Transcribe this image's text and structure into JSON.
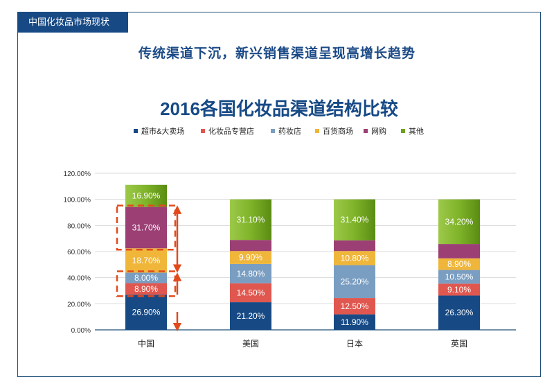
{
  "header": {
    "section_tab": "中国化妆品市场现状",
    "headline": "传统渠道下沉，新兴销售渠道呈现高增长趋势"
  },
  "chart_data": {
    "type": "bar",
    "stacked": true,
    "title": "2016各国化妆品渠道结构比较",
    "xlabel": "",
    "ylabel": "",
    "ylim": [
      0,
      120
    ],
    "yticks": [
      "0.00%",
      "20.00%",
      "40.00%",
      "60.00%",
      "80.00%",
      "100.00%",
      "120.00%"
    ],
    "grid": true,
    "legend_position": "top",
    "categories": [
      "中国",
      "美国",
      "日本",
      "英国"
    ],
    "series": [
      {
        "name": "超市&大卖场",
        "color": "#174a85",
        "values": [
          26.9,
          21.2,
          11.9,
          26.3
        ],
        "labels": [
          "26.90%",
          "21.20%",
          "11.90%",
          "26.30%"
        ]
      },
      {
        "name": "化妆品专营店",
        "color": "#e0574f",
        "values": [
          8.9,
          14.5,
          12.5,
          9.1
        ],
        "labels": [
          "8.90%",
          "14.50%",
          "12.50%",
          "9.10%"
        ]
      },
      {
        "name": "药妆店",
        "color": "#7a9ec2",
        "values": [
          8.0,
          14.8,
          25.2,
          10.5
        ],
        "labels": [
          "8.00%",
          "14.80%",
          "25.20%",
          "10.50%"
        ]
      },
      {
        "name": "百货商场",
        "color": "#f0b63a",
        "values": [
          18.7,
          9.9,
          10.8,
          8.9
        ],
        "labels": [
          "18.70%",
          "9.90%",
          "10.80%",
          "8.90%"
        ]
      },
      {
        "name": "网购",
        "color": "#9b3f74",
        "values": [
          31.7,
          8.5,
          8.2,
          11.0
        ],
        "labels": [
          "31.70%",
          "",
          "",
          ""
        ]
      },
      {
        "name": "其他",
        "color": "#6ea120",
        "values": [
          16.9,
          31.1,
          31.4,
          34.2
        ],
        "labels": [
          "16.90%",
          "31.10%",
          "31.40%",
          "34.20%"
        ]
      }
    ],
    "annotations": [
      {
        "type": "dashed-box",
        "category": "中国",
        "series": [
          "网购"
        ],
        "color": "#e24a1c"
      },
      {
        "type": "dashed-box",
        "category": "中国",
        "series": [
          "化妆品专营店",
          "药妆店"
        ],
        "color": "#e24a1c"
      },
      {
        "type": "arrow-updown",
        "category": "中国",
        "color": "#e24a1c"
      },
      {
        "type": "arrow-updown",
        "category": "中国",
        "color": "#e24a1c"
      },
      {
        "type": "arrow-down",
        "category": "中国",
        "color": "#e24a1c"
      }
    ]
  }
}
